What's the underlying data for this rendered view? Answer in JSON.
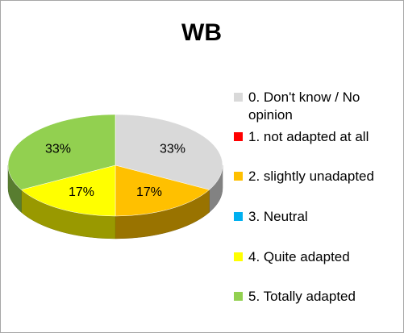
{
  "chart_data": {
    "type": "pie3d",
    "title": "WB",
    "categories": [
      "0. Don't know / No opinion",
      "1. not adapted at all",
      "2. slightly unadapted",
      "3. Neutral",
      "4. Quite adapted",
      "5. Totally adapted"
    ],
    "values": [
      33,
      0,
      17,
      0,
      17,
      33
    ],
    "value_labels": [
      "33%",
      null,
      "17%",
      null,
      "17%",
      "33%"
    ],
    "colors": [
      "#d9d9d9",
      "#ff0000",
      "#ffc000",
      "#00b0f0",
      "#ffff00",
      "#92d050"
    ]
  }
}
